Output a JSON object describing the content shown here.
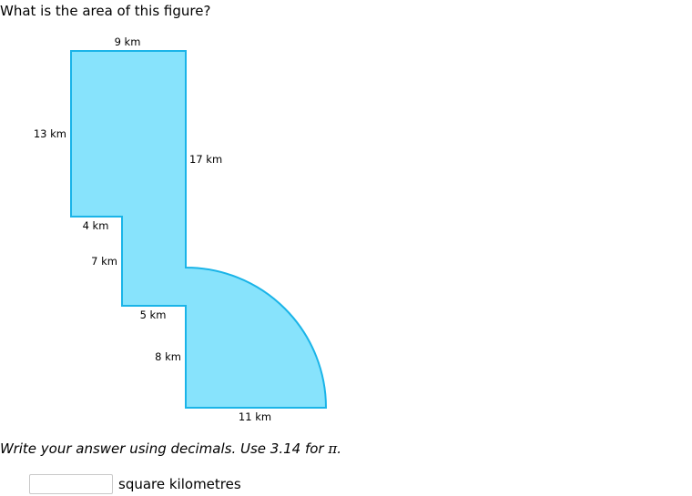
{
  "question": "What is the area of this figure?",
  "figure": {
    "fill_color": "#87e3fc",
    "stroke_color": "#1ab4e8",
    "labels": {
      "top": "9 km",
      "left": "13 km",
      "right": "17 km",
      "step_horizontal": "4 km",
      "step_vertical": "7 km",
      "inner_horizontal": "5 km",
      "inner_vertical": "8 km",
      "bottom": "11 km"
    }
  },
  "instruction": {
    "text": "Write your answer using decimals. Use 3.14 for ",
    "pi_symbol": "π",
    "end": "."
  },
  "answer": {
    "value": "",
    "unit": "square kilometres"
  }
}
